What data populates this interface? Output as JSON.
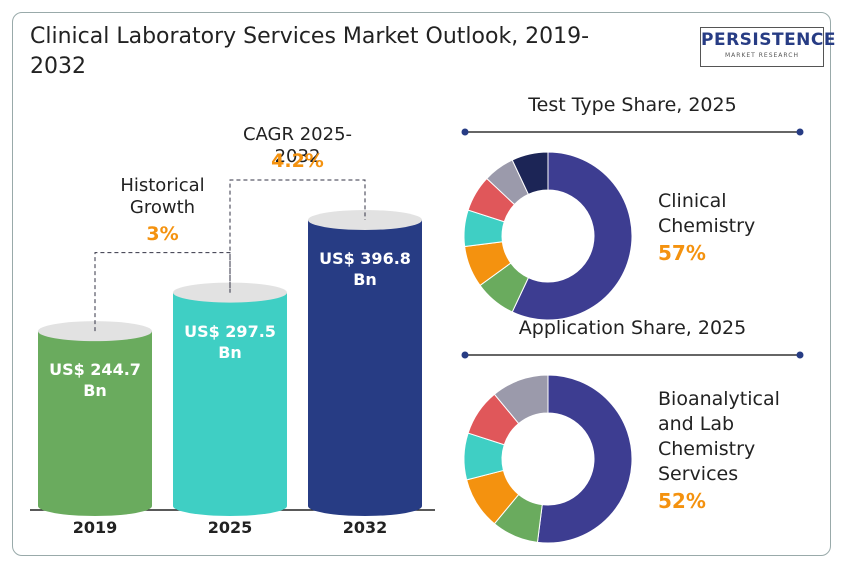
{
  "title": "Clinical Laboratory Services Market Outlook, 2019-2032",
  "logo": {
    "name": "PERSISTENCE",
    "tagline": "MARKET RESEARCH"
  },
  "chart_data": [
    {
      "type": "bar",
      "categories": [
        "2019",
        "2025",
        "2032"
      ],
      "values": [
        244.7,
        297.5,
        396.8
      ],
      "value_labels": [
        "US$ 244.7 Bn",
        "US$ 297.5 Bn",
        "US$ 396.8 Bn"
      ],
      "colors": [
        "#6aab5e",
        "#3fcfc4",
        "#273c84"
      ],
      "annotations": [
        {
          "text": "Historical Growth",
          "value": "3%",
          "from": 0,
          "to": 1
        },
        {
          "text": "CAGR 2025-2032",
          "value": "4.2%",
          "from": 1,
          "to": 2
        }
      ]
    },
    {
      "type": "pie",
      "title": "Test Type Share, 2025",
      "categories": [
        "Clinical Chemistry",
        null,
        null,
        null,
        null,
        null,
        null
      ],
      "values": [
        57,
        8,
        8,
        7,
        7,
        6,
        7
      ],
      "value_labels": [
        "57%",
        null,
        null,
        null,
        null,
        null,
        null
      ],
      "colors": [
        "#3d3d91",
        "#6aab5e",
        "#f4920f",
        "#3fcfc4",
        "#e0575a",
        "#9b9aab",
        "#1c2556"
      ]
    },
    {
      "type": "pie",
      "title": "Application Share, 2025",
      "categories": [
        "Bioanalytical and Lab Chemistry Services",
        null,
        null,
        null,
        null,
        null
      ],
      "values": [
        52,
        9,
        10,
        9,
        9,
        11
      ],
      "value_labels": [
        "52%",
        null,
        null,
        null,
        null,
        null
      ],
      "colors": [
        "#3d3d91",
        "#6aab5e",
        "#f4920f",
        "#3fcfc4",
        "#e0575a",
        "#9b9aab"
      ]
    }
  ]
}
